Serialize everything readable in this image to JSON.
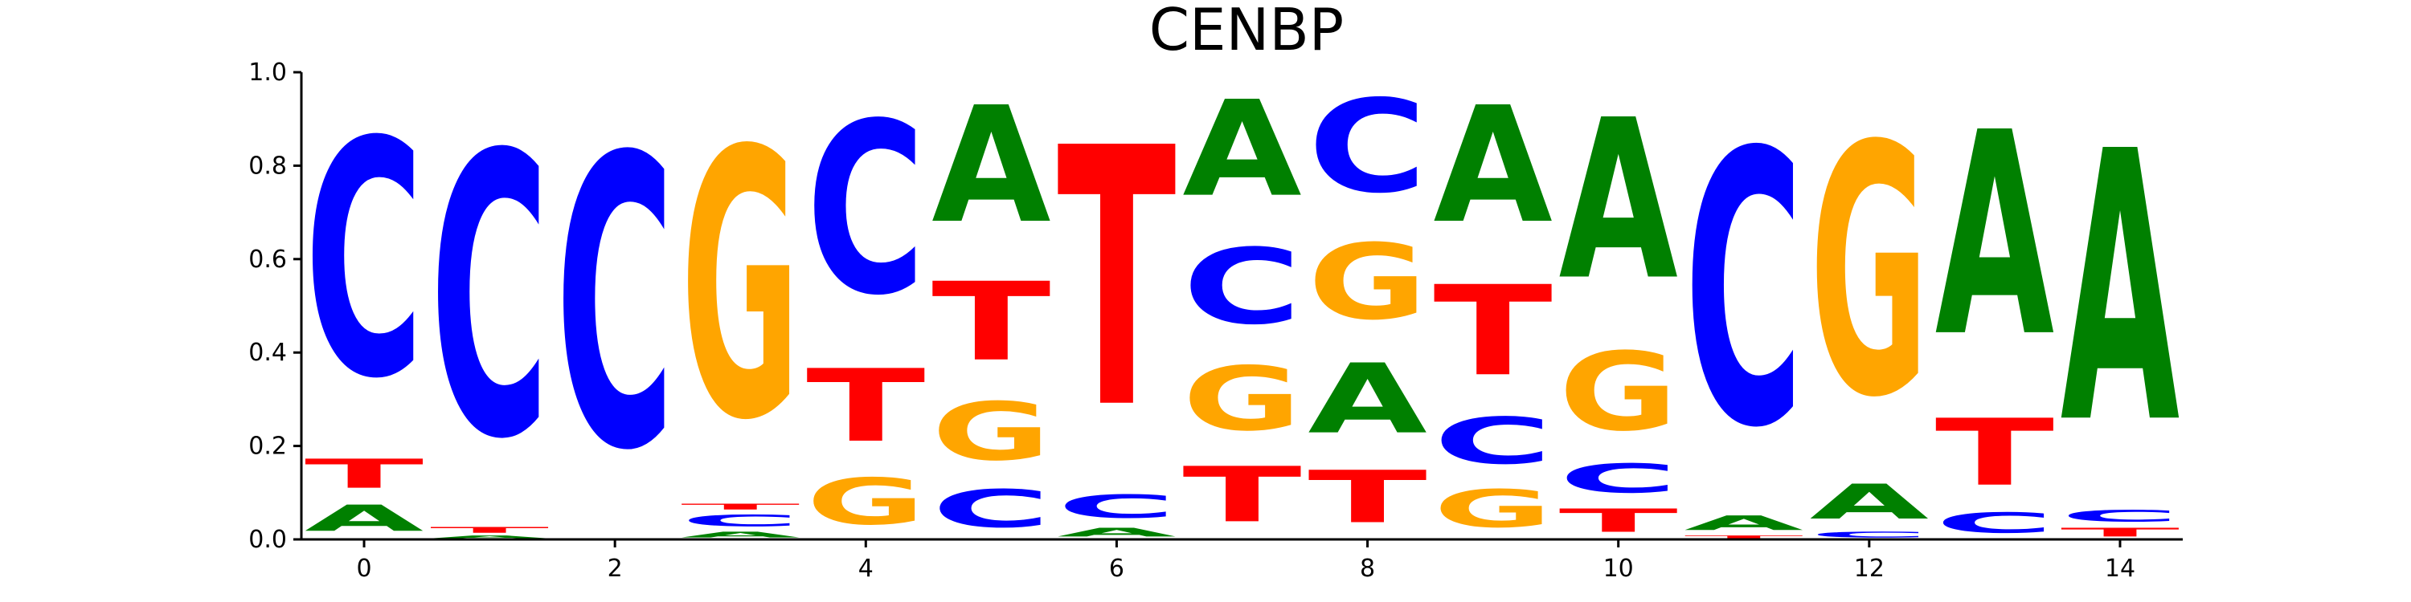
{
  "chart_data": {
    "type": "sequence-logo",
    "title": "CENBP",
    "xlabel": "",
    "ylabel": "",
    "xlim": [
      -0.5,
      14.5
    ],
    "ylim": [
      0,
      1
    ],
    "x_ticks": [
      0,
      2,
      4,
      6,
      8,
      10,
      12,
      14
    ],
    "y_ticks": [
      0.0,
      0.2,
      0.4,
      0.6,
      0.8,
      1.0
    ],
    "y_tick_labels": [
      "0.0",
      "0.2",
      "0.4",
      "0.6",
      "0.8",
      "1.0"
    ],
    "grid": false,
    "colors": {
      "A": "#008000",
      "C": "#0000ff",
      "G": "#ffa500",
      "T": "#ff0000"
    },
    "positions": [
      {
        "x": 0,
        "stack": [
          [
            "A",
            0.09
          ],
          [
            "T",
            0.1
          ],
          [
            "C",
            0.81
          ]
        ]
      },
      {
        "x": 1,
        "stack": [
          [
            "A",
            0.01
          ],
          [
            "T",
            0.02
          ],
          [
            "C",
            0.97
          ]
        ]
      },
      {
        "x": 2,
        "stack": [
          [
            "C",
            1.0
          ]
        ]
      },
      {
        "x": 3,
        "stack": [
          [
            "A",
            0.02
          ],
          [
            "C",
            0.04
          ],
          [
            "T",
            0.02
          ],
          [
            "G",
            0.92
          ]
        ]
      },
      {
        "x": 4,
        "stack": [
          [
            "G",
            0.16
          ],
          [
            "T",
            0.25
          ],
          [
            "C",
            0.59
          ]
        ]
      },
      {
        "x": 5,
        "stack": [
          [
            "C",
            0.13
          ],
          [
            "G",
            0.2
          ],
          [
            "T",
            0.27
          ],
          [
            "A",
            0.4
          ]
        ]
      },
      {
        "x": 6,
        "stack": [
          [
            "A",
            0.03
          ],
          [
            "C",
            0.08
          ],
          [
            "T",
            0.89
          ]
        ]
      },
      {
        "x": 7,
        "stack": [
          [
            "T",
            0.19
          ],
          [
            "G",
            0.22
          ],
          [
            "C",
            0.26
          ],
          [
            "A",
            0.33
          ]
        ]
      },
      {
        "x": 8,
        "stack": [
          [
            "T",
            0.18
          ],
          [
            "A",
            0.24
          ],
          [
            "G",
            0.26
          ],
          [
            "C",
            0.32
          ]
        ]
      },
      {
        "x": 9,
        "stack": [
          [
            "G",
            0.13
          ],
          [
            "C",
            0.16
          ],
          [
            "T",
            0.31
          ],
          [
            "A",
            0.4
          ]
        ]
      },
      {
        "x": 10,
        "stack": [
          [
            "T",
            0.08
          ],
          [
            "C",
            0.1
          ],
          [
            "G",
            0.27
          ],
          [
            "A",
            0.55
          ]
        ]
      },
      {
        "x": 11,
        "stack": [
          [
            "T",
            0.01
          ],
          [
            "A",
            0.05
          ],
          [
            "C",
            0.94
          ]
        ]
      },
      {
        "x": 12,
        "stack": [
          [
            "C",
            0.02
          ],
          [
            "A",
            0.12
          ],
          [
            "G",
            0.86
          ]
        ]
      },
      {
        "x": 13,
        "stack": [
          [
            "C",
            0.07
          ],
          [
            "T",
            0.23
          ],
          [
            "A",
            0.7
          ]
        ]
      },
      {
        "x": 14,
        "stack": [
          [
            "T",
            0.03
          ],
          [
            "C",
            0.04
          ],
          [
            "A",
            0.93
          ]
        ]
      }
    ]
  }
}
